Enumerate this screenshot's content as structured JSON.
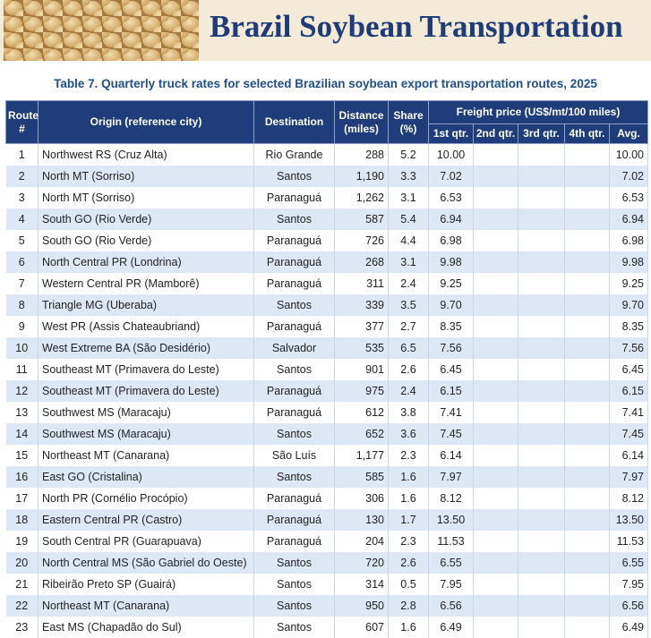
{
  "header": {
    "title": "Brazil Soybean Transportation"
  },
  "table": {
    "caption": "Table 7. Quarterly truck rates for selected Brazilian soybean export transportation routes, 2025",
    "columns": [
      "Route #",
      "Origin (reference city)",
      "Destination",
      "Distance (miles)",
      "Share (%)"
    ],
    "group_header": "Freight price (US$/mt/100 miles)",
    "subcolumns": [
      "1st qtr.",
      "2nd qtr.",
      "3rd qtr.",
      "4th qtr.",
      "Avg."
    ],
    "rows": [
      [
        "1",
        "Northwest RS (Cruz Alta)",
        "Rio Grande",
        "288",
        "5.2",
        "10.00",
        "10.00"
      ],
      [
        "2",
        "North MT (Sorriso)",
        "Santos",
        "1,190",
        "3.3",
        "7.02",
        "7.02"
      ],
      [
        "3",
        "North MT (Sorriso)",
        "Paranaguá",
        "1,262",
        "3.1",
        "6.53",
        "6.53"
      ],
      [
        "4",
        "South GO (Rio Verde)",
        "Santos",
        "587",
        "5.4",
        "6.94",
        "6.94"
      ],
      [
        "5",
        "South GO (Rio Verde)",
        "Paranaguá",
        "726",
        "4.4",
        "6.98",
        "6.98"
      ],
      [
        "6",
        "North Central PR (Londrina)",
        "Paranaguá",
        "268",
        "3.1",
        "9.98",
        "9.98"
      ],
      [
        "7",
        "Western Central PR (Mamborê)",
        "Paranaguá",
        "311",
        "2.4",
        "9.25",
        "9.25"
      ],
      [
        "8",
        "Triangle MG (Uberaba)",
        "Santos",
        "339",
        "3.5",
        "9.70",
        "9.70"
      ],
      [
        "9",
        "West PR (Assis Chateaubriand)",
        "Paranaguá",
        "377",
        "2.7",
        "8.35",
        "8.35"
      ],
      [
        "10",
        "West Extreme BA (São Desidério)",
        "Salvador",
        "535",
        "6.5",
        "7.56",
        "7.56"
      ],
      [
        "11",
        "Southeast MT (Primavera do Leste)",
        "Santos",
        "901",
        "2.6",
        "6.45",
        "6.45"
      ],
      [
        "12",
        "Southeast MT (Primavera do Leste)",
        "Paranaguá",
        "975",
        "2.4",
        "6.15",
        "6.15"
      ],
      [
        "13",
        "Southwest MS (Maracaju)",
        "Paranaguá",
        "612",
        "3.8",
        "7.41",
        "7.41"
      ],
      [
        "14",
        "Southwest MS (Maracaju)",
        "Santos",
        "652",
        "3.6",
        "7.45",
        "7.45"
      ],
      [
        "15",
        "Northeast MT (Canarana)",
        "São Luís",
        "1,177",
        "2.3",
        "6.14",
        "6.14"
      ],
      [
        "16",
        "East GO (Cristalina)",
        "Santos",
        "585",
        "1.6",
        "7.97",
        "7.97"
      ],
      [
        "17",
        "North PR (Cornélio Procópio)",
        "Paranaguá",
        "306",
        "1.6",
        "8.12",
        "8.12"
      ],
      [
        "18",
        "Eastern Central PR (Castro)",
        "Paranaguá",
        "130",
        "1.7",
        "13.50",
        "13.50"
      ],
      [
        "19",
        "South Central PR (Guarapuava)",
        "Paranaguá",
        "204",
        "2.3",
        "11.53",
        "11.53"
      ],
      [
        "20",
        "North Central MS (São Gabriel do Oeste)",
        "Santos",
        "720",
        "2.6",
        "6.55",
        "6.55"
      ],
      [
        "21",
        "Ribeirão Preto SP (Guairá)",
        "Santos",
        "314",
        "0.5",
        "7.95",
        "7.95"
      ],
      [
        "22",
        "Northeast MT (Canarana)",
        "Santos",
        "950",
        "2.8",
        "6.56",
        "6.56"
      ],
      [
        "23",
        "East MS (Chapadão do Sul)",
        "Santos",
        "607",
        "1.6",
        "6.49",
        "6.49"
      ]
    ]
  }
}
